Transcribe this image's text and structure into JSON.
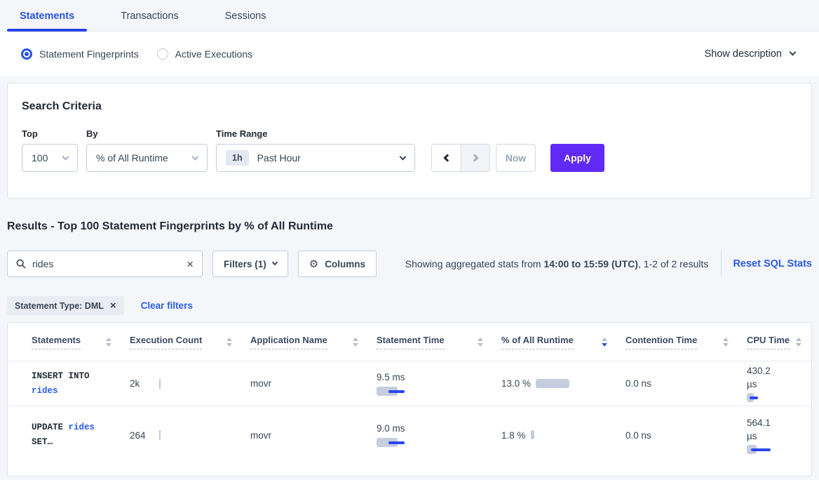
{
  "tabs": [
    {
      "label": "Statements",
      "active": true
    },
    {
      "label": "Transactions",
      "active": false
    },
    {
      "label": "Sessions",
      "active": false
    }
  ],
  "view_toggle": {
    "options": [
      {
        "label": "Statement Fingerprints",
        "selected": true
      },
      {
        "label": "Active Executions",
        "selected": false
      }
    ],
    "show_description_label": "Show description"
  },
  "search_criteria": {
    "title": "Search Criteria",
    "top_label": "Top",
    "top_value": "100",
    "by_label": "By",
    "by_value": "% of All Runtime",
    "time_range_label": "Time Range",
    "time_range_badge": "1h",
    "time_range_value": "Past Hour",
    "now_label": "Now",
    "apply_label": "Apply"
  },
  "results": {
    "heading": "Results - Top 100 Statement Fingerprints by % of All Runtime",
    "search_value": "rides",
    "filters_label": "Filters (1)",
    "columns_label": "Columns",
    "stats_prefix": "Showing aggregated stats from ",
    "stats_bold": "14:00 to 15:59 (UTC)",
    "stats_suffix": ", 1-2 of 2 results",
    "reset_label": "Reset SQL Stats",
    "filter_chip": "Statement Type: DML",
    "clear_filters_label": "Clear filters"
  },
  "table": {
    "columns": [
      {
        "label": "Statements",
        "sort": "none"
      },
      {
        "label": "Execution Count",
        "sort": "none"
      },
      {
        "label": "Application Name",
        "sort": "none"
      },
      {
        "label": "Statement Time",
        "sort": "none"
      },
      {
        "label": "% of All Runtime",
        "sort": "desc"
      },
      {
        "label": "Contention Time",
        "sort": "none"
      },
      {
        "label": "CPU Time",
        "sort": "none"
      }
    ],
    "rows": [
      {
        "statement": {
          "line1": "INSERT INTO",
          "line2": "rides"
        },
        "execution_count": "2k",
        "application_name": "movr",
        "statement_time": "9.5 ms",
        "statement_time_bar": {
          "gray": 30,
          "line_start": 17,
          "line_width": 23
        },
        "pct_of_runtime": "13.0 %",
        "pct_of_runtime_bar": {
          "gray": 48,
          "line_start": 0,
          "line_width": 0
        },
        "contention_time": "0.0 ns",
        "cpu_time": "430.2 µs",
        "cpu_time_bar": {
          "gray": 10,
          "line_start": 4,
          "line_width": 12
        }
      },
      {
        "statement": {
          "line1_plain": "UPDATE ",
          "line1_link": "rides",
          "line2": "SET…"
        },
        "execution_count": "264",
        "application_name": "movr",
        "statement_time": "9.0 ms",
        "statement_time_bar": {
          "gray": 30,
          "line_start": 17,
          "line_width": 23
        },
        "pct_of_runtime": "1.8 %",
        "pct_of_runtime_bar": {
          "gray": 5,
          "line_start": 0,
          "line_width": 0
        },
        "contention_time": "0.0 ns",
        "cpu_time": "564.1 µs",
        "cpu_time_bar": {
          "gray": 14,
          "line_start": 6,
          "line_width": 28
        }
      }
    ]
  },
  "colors": {
    "accent_blue": "#2a53e0",
    "link_blue": "#2a5ce8",
    "apply_purple": "#6129f5",
    "bar_gray": "#c6cdde",
    "bar_blue": "#2b46f0"
  }
}
